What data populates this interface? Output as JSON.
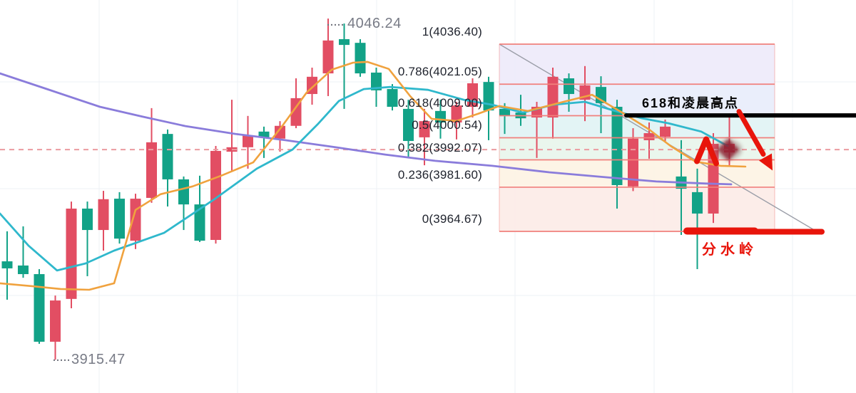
{
  "labels": {
    "high_marker": "4046.24",
    "low_marker": "3915.47"
  },
  "annotations": {
    "resistance_text": "618和凌晨高点",
    "support_text": "分水岭"
  },
  "colors": {
    "background": "#ffffff",
    "grid": "#eef0f5",
    "candle_up": "#12a287",
    "candle_down": "#e24e63",
    "ma_fast_orange": "#f0a23e",
    "ma_mid_cyan": "#2fb8cc",
    "ma_slow_purple": "#8a7cdb",
    "fib_line": "#f1807c",
    "dashed_level_line": "#eb9ba0",
    "trendline_gray": "#9b9ea8",
    "marker_gray_text": "#787b86",
    "fib_text": "#20242e",
    "annotation_black": "#000000",
    "annotation_red": "#e8150b",
    "diamond_marker": "#8e1f2d",
    "band_fills": [
      "#eeeafa",
      "#e8edfb",
      "#e1f3f4",
      "#e8f5eb",
      "#fdf3e4",
      "#fcebe7"
    ]
  },
  "chart_data": {
    "type": "candlestick",
    "title": "",
    "price_high": 4046.24,
    "price_low": 3915.47,
    "dashed_level_price": 3996.0,
    "ylim": [
      3905,
      4055
    ],
    "fib_retracement": {
      "zone_start_x": 700,
      "zone_end_x": 1086,
      "levels": [
        {
          "label": "1(4036.40)",
          "ratio": 1,
          "price": 4036.4
        },
        {
          "label": "0.786(4021.05)",
          "ratio": 0.786,
          "price": 4021.05
        },
        {
          "label": "0.618(4009.00)",
          "ratio": 0.618,
          "price": 4009.0
        },
        {
          "label": "0.5(4000.54)",
          "ratio": 0.5,
          "price": 4000.54
        },
        {
          "label": "0.382(3992.07)",
          "ratio": 0.382,
          "price": 3992.07
        },
        {
          "label": "0.236(3981.60)",
          "ratio": 0.236,
          "price": 3981.6
        },
        {
          "label": "0(3964.67)",
          "ratio": 0,
          "price": 3964.67
        }
      ]
    },
    "drawn_lines": {
      "resistance_black": {
        "price": 4009.1,
        "x1": 878,
        "x2": 1200
      },
      "support_red": {
        "price": 3964.8,
        "x1": 963,
        "x2": 1152
      },
      "trendline": {
        "x1": 700,
        "price1": 4036.4,
        "x2": 1152,
        "price2": 3963.5
      },
      "arrow_down": {
        "x1": 1036,
        "price1": 4010.6,
        "x2": 1083,
        "price2": 3988.0
      },
      "caret_up": {
        "x": 990,
        "price": 4000.0
      },
      "diamond": {
        "x": 1021,
        "price": 3996.0
      }
    },
    "candles": [
      [
        3950.5,
        3964.7,
        3938.5,
        3953.2
      ],
      [
        3948.3,
        3966.6,
        3946.9,
        3951.6
      ],
      [
        3922.4,
        3950.2,
        3921.6,
        3948.3
      ],
      [
        3938.2,
        3940.1,
        3915.5,
        3922.4
      ],
      [
        3973.4,
        3976.1,
        3935.2,
        3938.8
      ],
      [
        3965.2,
        3976.1,
        3947.5,
        3973.4
      ],
      [
        3977.0,
        3980.2,
        3957.3,
        3965.2
      ],
      [
        3961.9,
        3979.7,
        3960.0,
        3977.2
      ],
      [
        3977.2,
        3979.1,
        3957.9,
        3961.1
      ],
      [
        3998.8,
        4011.9,
        3975.6,
        3977.5
      ],
      [
        3984.6,
        4003.7,
        3974.2,
        4002.0
      ],
      [
        3975.0,
        3985.7,
        3965.2,
        3984.6
      ],
      [
        3961.1,
        3986.0,
        3960.6,
        3975.0
      ],
      [
        3995.5,
        3997.4,
        3960.0,
        3961.4
      ],
      [
        3996.9,
        4015.1,
        3987.9,
        3995.2
      ],
      [
        4001.5,
        4008.9,
        3988.7,
        3996.9
      ],
      [
        4000.7,
        4004.8,
        3992.8,
        4002.9
      ],
      [
        4005.1,
        4006.9,
        3995.2,
        4000.2
      ],
      [
        4015.7,
        4023.3,
        4004.2,
        4005.1
      ],
      [
        4023.9,
        4027.4,
        4013.2,
        4017.3
      ],
      [
        4037.8,
        4046.2,
        4016.5,
        4025.2
      ],
      [
        4036.1,
        4044.3,
        4011.6,
        4038.3
      ],
      [
        4025.2,
        4038.3,
        4023.9,
        4036.9
      ],
      [
        4018.7,
        4027.4,
        4012.4,
        4025.5
      ],
      [
        4012.4,
        4021.1,
        4011.0,
        4019.2
      ],
      [
        3999.3,
        4015.1,
        3993.3,
        4011.6
      ],
      [
        4006.9,
        4011.6,
        3990.0,
        4000.7
      ],
      [
        4006.4,
        4015.1,
        4000.2,
        4010.8
      ],
      [
        4012.9,
        4014.3,
        3999.9,
        4006.4
      ],
      [
        4021.4,
        4023.3,
        4008.3,
        4012.4
      ],
      [
        4011.0,
        4023.9,
        3999.6,
        4021.9
      ],
      [
        4008.9,
        4013.8,
        4002.0,
        4011.6
      ],
      [
        4008.0,
        4017.0,
        4005.1,
        4010.2
      ],
      [
        4012.4,
        4014.3,
        3992.8,
        4008.3
      ],
      [
        4023.9,
        4027.4,
        4000.2,
        4008.3
      ],
      [
        4017.3,
        4025.2,
        4010.5,
        4023.3
      ],
      [
        4020.6,
        4028.0,
        4006.9,
        4015.1
      ],
      [
        4013.8,
        4024.1,
        4002.3,
        4020.0
      ],
      [
        3982.4,
        4015.1,
        3973.4,
        4012.4
      ],
      [
        4000.2,
        4004.2,
        3980.1,
        3981.9
      ],
      [
        4002.3,
        4006.4,
        3992.5,
        3999.6
      ],
      [
        4004.8,
        4007.5,
        3998.8,
        4000.9
      ],
      [
        3981.0,
        3999.6,
        3963.3,
        3985.7
      ],
      [
        3971.5,
        3988.7,
        3950.2,
        3979.7
      ],
      [
        3998.2,
        4002.3,
        3967.9,
        3971.5
      ],
      [
        3998.2,
        4008.9,
        3990.0,
        3994.9
      ]
    ],
    "series": [
      {
        "name": "ma-fast-orange",
        "points": [
          [
            0,
            3944.8
          ],
          [
            45,
            3943.7
          ],
          [
            85,
            3942.6
          ],
          [
            125,
            3942.3
          ],
          [
            160,
            3944.8
          ],
          [
            190,
            3972.9
          ],
          [
            225,
            3978.9
          ],
          [
            270,
            3981.9
          ],
          [
            310,
            3986.0
          ],
          [
            355,
            3991.1
          ],
          [
            395,
            4004.8
          ],
          [
            430,
            4017.9
          ],
          [
            465,
            4026.6
          ],
          [
            495,
            4029.3
          ],
          [
            515,
            4029.6
          ],
          [
            545,
            4026.9
          ],
          [
            575,
            4016.5
          ],
          [
            605,
            4007.8
          ],
          [
            640,
            4007.0
          ],
          [
            670,
            4009.7
          ],
          [
            700,
            4012.7
          ],
          [
            740,
            4010.8
          ],
          [
            790,
            4014.3
          ],
          [
            830,
            4017.0
          ],
          [
            877,
            4009.4
          ],
          [
            910,
            4003.7
          ],
          [
            940,
            3997.4
          ],
          [
            975,
            3991.4
          ],
          [
            1010,
            3989.8
          ],
          [
            1045,
            3989.5
          ]
        ]
      },
      {
        "name": "ma-mid-cyan",
        "points": [
          [
            0,
            3971.5
          ],
          [
            40,
            3959.2
          ],
          [
            80,
            3949.7
          ],
          [
            120,
            3952.4
          ],
          [
            160,
            3957.3
          ],
          [
            230,
            3964.1
          ],
          [
            300,
            3976.9
          ],
          [
            360,
            3988.7
          ],
          [
            410,
            3996.0
          ],
          [
            445,
            4005.6
          ],
          [
            475,
            4014.6
          ],
          [
            510,
            4019.2
          ],
          [
            547,
            4020.0
          ],
          [
            600,
            4018.9
          ],
          [
            650,
            4015.1
          ],
          [
            690,
            4013.2
          ],
          [
            733,
            4010.2
          ],
          [
            775,
            4013.2
          ],
          [
            820,
            4014.3
          ],
          [
            860,
            4011.0
          ],
          [
            900,
            4008.0
          ],
          [
            937,
            4006.1
          ],
          [
            983,
            4002.9
          ],
          [
            1020,
            3997.4
          ]
        ]
      },
      {
        "name": "ma-slow-purple",
        "points": [
          [
            0,
            4025.2
          ],
          [
            70,
            4018.8
          ],
          [
            140,
            4012.4
          ],
          [
            200,
            4008.6
          ],
          [
            260,
            4005.0
          ],
          [
            330,
            4002.0
          ],
          [
            400,
            3999.6
          ],
          [
            470,
            3996.9
          ],
          [
            540,
            3994.1
          ],
          [
            610,
            3991.7
          ],
          [
            690,
            3989.8
          ],
          [
            770,
            3987.3
          ],
          [
            850,
            3985.4
          ],
          [
            920,
            3983.8
          ],
          [
            990,
            3983.0
          ],
          [
            1025,
            3982.7
          ]
        ]
      }
    ]
  }
}
